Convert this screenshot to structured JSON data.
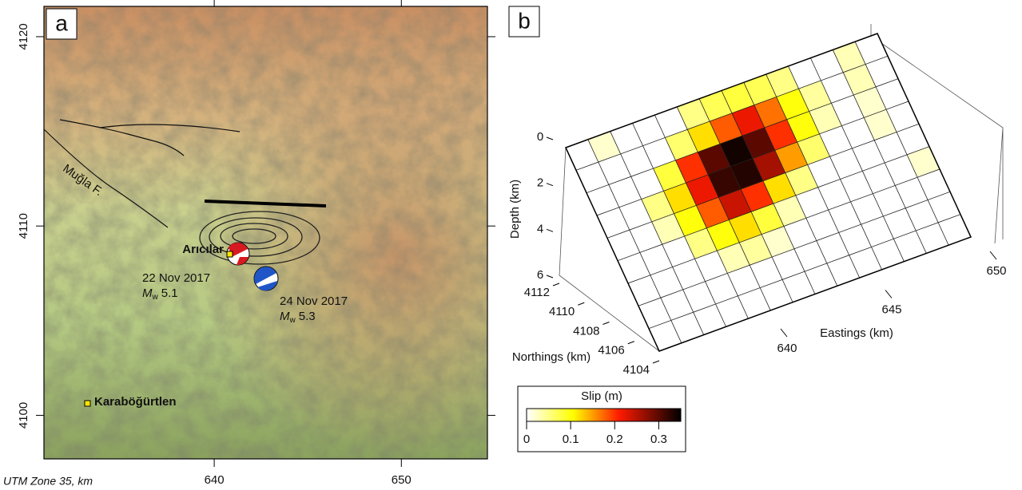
{
  "panel_a": {
    "label": "a",
    "xlim": [
      630.9,
      654.6
    ],
    "xticks": [
      640,
      650
    ],
    "ylim": [
      4097.7,
      4121.6
    ],
    "yticks": [
      4100,
      4110,
      4120
    ],
    "projection": "UTM Zone 35, km",
    "fault_label": "Muğla F.",
    "town_1": "Arıcılar",
    "town_2": "Karaböğürtlen",
    "event_1": {
      "date": "22 Nov 2017",
      "m": "M",
      "sub": "w",
      "mag": "5.1"
    },
    "event_2": {
      "date": "24 Nov 2017",
      "m": "M",
      "sub": "w",
      "mag": "5.3"
    }
  },
  "panel_b": {
    "label": "b",
    "depth_title": "Depth (km)",
    "zlim": [
      0,
      6
    ],
    "zticks": [
      0,
      2,
      4,
      6
    ],
    "north_title": "Northings (km)",
    "ylim": [
      4112,
      4104
    ],
    "yticks": [
      4112,
      4110,
      4108,
      4106,
      4104
    ],
    "east_title": "Eastings (km)",
    "xlim": [
      640,
      650
    ],
    "xticks": [
      640,
      645,
      650
    ],
    "colorbar_title": "Slip (m)",
    "clim": [
      0,
      0.35
    ],
    "cticks": [
      0,
      0.1,
      0.2,
      0.3
    ],
    "slip_grid": [
      [
        0,
        0.02,
        0,
        0,
        0,
        0.05,
        0.07,
        0.08,
        0.07,
        0.05,
        0,
        0,
        0.03,
        0
      ],
      [
        0,
        0,
        0,
        0,
        0.06,
        0.12,
        0.18,
        0.22,
        0.17,
        0.1,
        0.04,
        0,
        0.03,
        0
      ],
      [
        0,
        0,
        0,
        0.08,
        0.2,
        0.3,
        0.34,
        0.3,
        0.2,
        0.1,
        0.03,
        0,
        0.02,
        0
      ],
      [
        0,
        0,
        0.05,
        0.12,
        0.22,
        0.32,
        0.33,
        0.26,
        0.15,
        0.06,
        0,
        0,
        0.02,
        0
      ],
      [
        0,
        0,
        0.03,
        0.1,
        0.18,
        0.24,
        0.2,
        0.12,
        0.05,
        0,
        0,
        0,
        0,
        0
      ],
      [
        0,
        0,
        0,
        0.05,
        0.1,
        0.12,
        0.08,
        0.03,
        0,
        0,
        0,
        0,
        0,
        0.02
      ],
      [
        0,
        0,
        0,
        0,
        0.03,
        0.04,
        0.02,
        0,
        0,
        0,
        0,
        0,
        0,
        0
      ],
      [
        0,
        0,
        0,
        0,
        0,
        0,
        0,
        0,
        0,
        0,
        0,
        0,
        0,
        0
      ],
      [
        0,
        0,
        0,
        0,
        0,
        0,
        0,
        0,
        0,
        0,
        0,
        0,
        0,
        0
      ]
    ]
  }
}
